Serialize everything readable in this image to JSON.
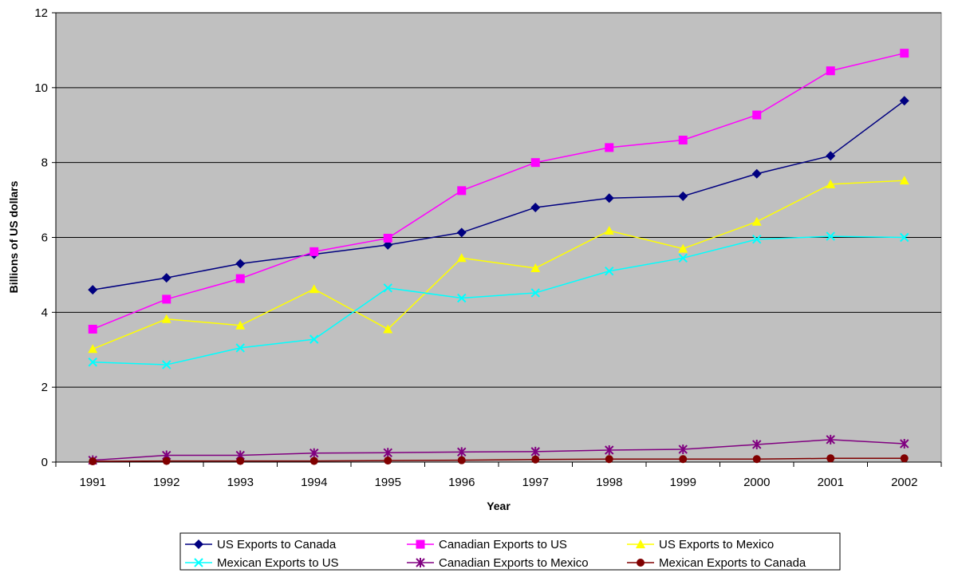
{
  "chart_data": {
    "type": "line",
    "title": "",
    "xlabel": "Year",
    "ylabel": "Billions of US dollars",
    "categories": [
      "1991",
      "1992",
      "1993",
      "1994",
      "1995",
      "1996",
      "1997",
      "1998",
      "1999",
      "2000",
      "2001",
      "2002"
    ],
    "ylim": [
      0,
      12
    ],
    "yticks": [
      "0",
      "2",
      "4",
      "6",
      "8",
      "10",
      "12"
    ],
    "grid": true,
    "legend_position": "bottom",
    "plot_background": "#c0c0c0",
    "series": [
      {
        "name": "US Exports to Canada",
        "color": "#000080",
        "marker": "diamond",
        "values": [
          4.6,
          4.92,
          5.3,
          5.55,
          5.8,
          6.13,
          6.8,
          7.05,
          7.1,
          7.7,
          8.18,
          9.65
        ]
      },
      {
        "name": "Canadian Exports to US",
        "color": "#ff00ff",
        "marker": "square",
        "values": [
          3.55,
          4.35,
          4.9,
          5.62,
          5.98,
          7.25,
          8.0,
          8.4,
          8.6,
          9.27,
          10.45,
          10.92
        ]
      },
      {
        "name": "US Exports to Mexico",
        "color": "#ffff00",
        "marker": "triangle",
        "values": [
          3.02,
          3.82,
          3.65,
          4.62,
          3.55,
          5.45,
          5.18,
          6.18,
          5.7,
          6.42,
          7.42,
          7.52
        ]
      },
      {
        "name": "Mexican Exports to US",
        "color": "#00ffff",
        "marker": "x",
        "values": [
          2.67,
          2.6,
          3.05,
          3.28,
          4.65,
          4.38,
          4.52,
          5.1,
          5.45,
          5.95,
          6.03,
          6.0
        ]
      },
      {
        "name": "Canadian Exports to Mexico",
        "color": "#800080",
        "marker": "star",
        "values": [
          0.05,
          0.18,
          0.18,
          0.24,
          0.25,
          0.27,
          0.28,
          0.32,
          0.34,
          0.47,
          0.6,
          0.49
        ]
      },
      {
        "name": "Mexican Exports to Canada",
        "color": "#800000",
        "marker": "circle",
        "values": [
          0.02,
          0.03,
          0.03,
          0.03,
          0.04,
          0.05,
          0.07,
          0.08,
          0.08,
          0.08,
          0.1,
          0.1
        ]
      }
    ]
  }
}
